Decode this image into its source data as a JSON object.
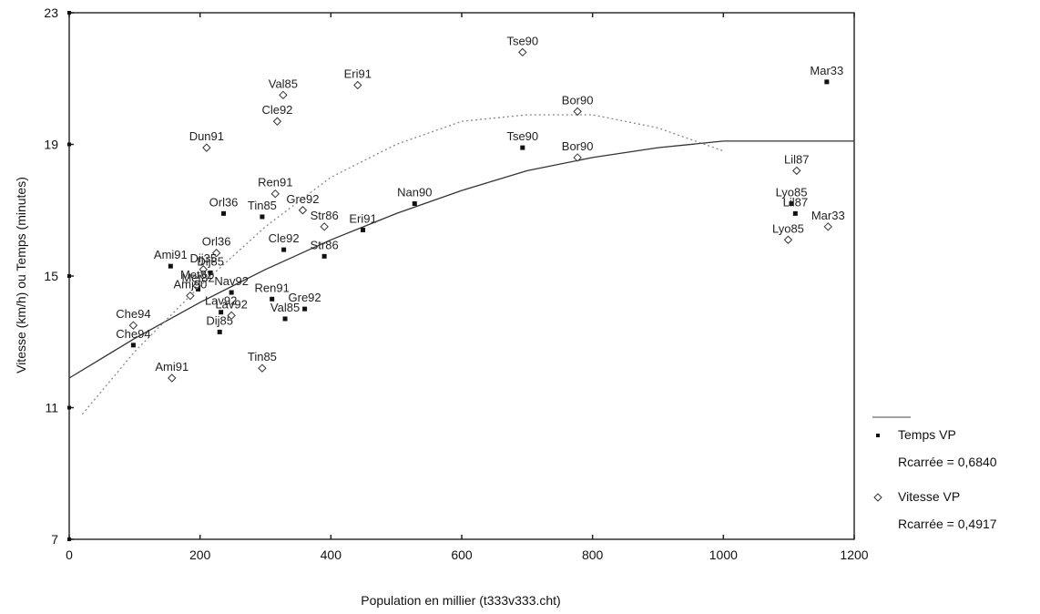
{
  "chart_data": {
    "type": "scatter",
    "title": "",
    "xlabel": "Population en millier (t333v333.cht)",
    "ylabel": "Vitesse (km/h) ou Temps (minutes)",
    "xlim": [
      0,
      1200
    ],
    "ylim": [
      7,
      23
    ],
    "x_ticks": [
      "0",
      "200",
      "400",
      "600",
      "800",
      "1000",
      "1200"
    ],
    "y_ticks": [
      "7",
      "11",
      "15",
      "19",
      "23"
    ],
    "x_tick_values": [
      0,
      200,
      400,
      600,
      800,
      1000,
      1200
    ],
    "y_tick_values": [
      7,
      11,
      15,
      19,
      23
    ],
    "grid": false,
    "legend_position": "bottom-right",
    "legend": [
      {
        "name": "Temps VP",
        "marker": "filled-square",
        "stat": "Rcarrée = 0,6840"
      },
      {
        "name": "Vitesse VP",
        "marker": "open-diamond",
        "stat": "Rcarrée = 0,4917"
      }
    ],
    "series": [
      {
        "name": "Temps VP",
        "marker": "filled-square",
        "points": [
          {
            "x": 1158,
            "y": 20.9,
            "label": "Mar33"
          },
          {
            "x": 693,
            "y": 18.9,
            "label": "Tse90"
          },
          {
            "x": 1104,
            "y": 17.2,
            "label": "Lyo85"
          },
          {
            "x": 1110,
            "y": 16.9,
            "label": "Lil87"
          },
          {
            "x": 528,
            "y": 17.2,
            "label": "Nan90"
          },
          {
            "x": 449,
            "y": 16.4,
            "label": "Eri91"
          },
          {
            "x": 236,
            "y": 16.9,
            "label": "Orl36"
          },
          {
            "x": 295,
            "y": 16.8,
            "label": "Tin85"
          },
          {
            "x": 328,
            "y": 15.8,
            "label": "Cle92"
          },
          {
            "x": 390,
            "y": 15.6,
            "label": "Str86"
          },
          {
            "x": 155,
            "y": 15.3,
            "label": "Ami91"
          },
          {
            "x": 216,
            "y": 15.1,
            "label": "Dij85"
          },
          {
            "x": 197,
            "y": 14.6,
            "label": "Met82"
          },
          {
            "x": 248,
            "y": 14.5,
            "label": "Nav92"
          },
          {
            "x": 310,
            "y": 14.3,
            "label": "Ren91"
          },
          {
            "x": 360,
            "y": 14.0,
            "label": "Gre92"
          },
          {
            "x": 330,
            "y": 13.7,
            "label": "Val85"
          },
          {
            "x": 232,
            "y": 13.9,
            "label": "Lav92"
          },
          {
            "x": 230,
            "y": 13.3,
            "label": "Dij85"
          },
          {
            "x": 98,
            "y": 12.9,
            "label": "Che94"
          }
        ]
      },
      {
        "name": "Vitesse VP",
        "marker": "open-diamond",
        "points": [
          {
            "x": 693,
            "y": 21.8,
            "label": "Tse90"
          },
          {
            "x": 441,
            "y": 20.8,
            "label": "Eri91"
          },
          {
            "x": 327,
            "y": 20.5,
            "label": "Val85"
          },
          {
            "x": 318,
            "y": 19.7,
            "label": "Cle92"
          },
          {
            "x": 777,
            "y": 20.0,
            "label": "Bor90"
          },
          {
            "x": 210,
            "y": 18.9,
            "label": "Dun91"
          },
          {
            "x": 777,
            "y": 18.6,
            "label": "Bor90"
          },
          {
            "x": 1112,
            "y": 18.2,
            "label": "Lil87"
          },
          {
            "x": 315,
            "y": 17.5,
            "label": "Ren91"
          },
          {
            "x": 357,
            "y": 17.0,
            "label": "Gre92"
          },
          {
            "x": 390,
            "y": 16.5,
            "label": "Str86"
          },
          {
            "x": 1099,
            "y": 16.1,
            "label": "Lyo85"
          },
          {
            "x": 1160,
            "y": 16.5,
            "label": "Mar33"
          },
          {
            "x": 225,
            "y": 15.7,
            "label": "Orl36"
          },
          {
            "x": 205,
            "y": 15.2,
            "label": "Dij35"
          },
          {
            "x": 195,
            "y": 14.7,
            "label": "Met82"
          },
          {
            "x": 185,
            "y": 14.4,
            "label": "Amj90"
          },
          {
            "x": 248,
            "y": 13.8,
            "label": "Lav92"
          },
          {
            "x": 98,
            "y": 13.5,
            "label": "Che94"
          },
          {
            "x": 295,
            "y": 12.2,
            "label": "Tin85"
          },
          {
            "x": 157,
            "y": 11.9,
            "label": "Ami91"
          }
        ]
      }
    ],
    "fits": [
      {
        "name": "Temps VP",
        "style": "solid",
        "points": [
          [
            0,
            11.9
          ],
          [
            100,
            13.1
          ],
          [
            200,
            14.2
          ],
          [
            300,
            15.2
          ],
          [
            400,
            16.1
          ],
          [
            500,
            16.9
          ],
          [
            600,
            17.6
          ],
          [
            700,
            18.2
          ],
          [
            800,
            18.6
          ],
          [
            900,
            18.9
          ],
          [
            1000,
            19.1
          ],
          [
            1100,
            19.1
          ],
          [
            1200,
            19.1
          ]
        ]
      },
      {
        "name": "Vitesse VP",
        "style": "dotted",
        "points": [
          [
            20,
            10.8
          ],
          [
            100,
            12.7
          ],
          [
            200,
            14.7
          ],
          [
            300,
            16.5
          ],
          [
            400,
            18.0
          ],
          [
            500,
            19.0
          ],
          [
            600,
            19.7
          ],
          [
            700,
            19.9
          ],
          [
            800,
            19.9
          ],
          [
            900,
            19.5
          ],
          [
            1000,
            18.8
          ]
        ]
      }
    ]
  }
}
